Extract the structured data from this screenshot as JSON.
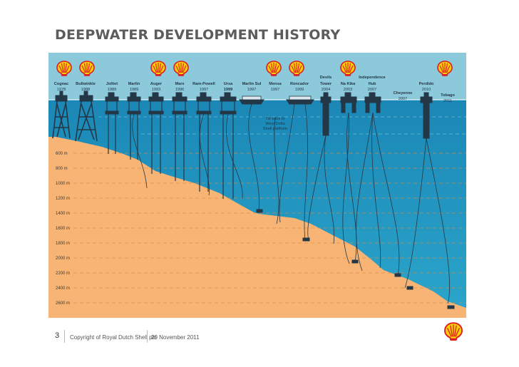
{
  "page": {
    "title": "DEEPWATER DEVELOPMENT HISTORY",
    "page_number": "3",
    "copyright": "Copyright of Royal Dutch Shell plc",
    "date": "29 November 2011"
  },
  "colors": {
    "sky": "#8cc9da",
    "water_top": "#1e8fbd",
    "water_bottom": "#2aa3c9",
    "seabed": "#f7b474",
    "shell_red": "#dd1d21",
    "shell_yellow": "#fbce07",
    "structure": "#233746",
    "label_text": "#243746"
  },
  "depth_labels": [
    "600 m",
    "800 m",
    "1000 m",
    "1200 m",
    "1400 m",
    "1600 m",
    "1800 m",
    "2000 m",
    "2200 m",
    "2400 m",
    "2600 m"
  ],
  "projects": [
    {
      "name": "Cognac",
      "year": "1978",
      "type": "fixed",
      "depth_m": 312
    },
    {
      "name": "Bullwinkle",
      "year": "1988",
      "type": "fixed",
      "depth_m": 412
    },
    {
      "name": "Jolliet",
      "year": "1989",
      "type": "tlp",
      "depth_m": 536
    },
    {
      "name": "Marlin",
      "year": "1989",
      "type": "tlp",
      "depth_m": 986
    },
    {
      "name": "Auger",
      "year": "1993",
      "type": "tlp",
      "depth_m": 872
    },
    {
      "name": "Mars",
      "year": "1996",
      "type": "tlp",
      "depth_m": 896
    },
    {
      "name": "Ram-Powell",
      "year": "1997",
      "type": "tlp",
      "depth_m": 980
    },
    {
      "name": "Ursa",
      "year": "1999",
      "type": "tlp",
      "depth_m": 1204
    },
    {
      "name": "Marlin Sul",
      "year": "1997",
      "type": "fpso"
    },
    {
      "name": "Mensa",
      "year": "1997",
      "type": "subsea"
    },
    {
      "name": "Roncador",
      "year": "1999",
      "type": "fpso"
    },
    {
      "name": "Devils Tower",
      "year": "2004",
      "type": "spar"
    },
    {
      "name": "Na Kika",
      "year": "2003",
      "type": "semi"
    },
    {
      "name": "Independence Hub",
      "year": "2007",
      "type": "semi"
    },
    {
      "name": "Cheyenne",
      "year": "2007",
      "type": "subsea"
    },
    {
      "name": "Perdido",
      "year": "2010",
      "type": "spar"
    },
    {
      "name": "Tobago",
      "year": "2011",
      "type": "subsea"
    }
  ],
  "annotation": "Tie back to West Delta Shell platform",
  "icons": {
    "logo": "shell-pecten-logo"
  }
}
